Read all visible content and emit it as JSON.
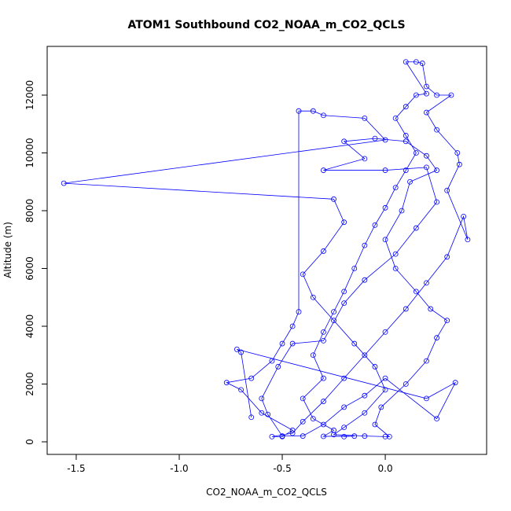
{
  "chart_data": {
    "type": "scatter",
    "connected": true,
    "title": "ATOM1 Southbound CO2_NOAA_m_CO2_QCLS",
    "x_label": "CO2_NOAA_m_CO2_QCLS",
    "y_label": "Altitude (m)",
    "color": "#0000ff",
    "xlim": [
      -1.641,
      0.492
    ],
    "ylim": [
      -435,
      13687
    ],
    "xticks": [
      {
        "value": -1.5,
        "label": "-1.5"
      },
      {
        "value": -1,
        "label": "-1.0"
      },
      {
        "value": -0.5,
        "label": "-0.5"
      },
      {
        "value": 0,
        "label": "0.0"
      }
    ],
    "yticks": [
      0,
      2000,
      4000,
      6000,
      8000,
      10000,
      12000
    ],
    "x": [
      -0.2,
      -0.15,
      -0.3,
      -0.25,
      -0.35,
      -0.4,
      -0.3,
      -0.35,
      -0.3,
      -0.25,
      -0.2,
      -0.15,
      -0.1,
      -0.05,
      0.0,
      0.05,
      0.1,
      0.15,
      0.1,
      0.05,
      0.1,
      0.15,
      0.2,
      0.1,
      0.15,
      0.18,
      0.2,
      0.25,
      0.32,
      0.2,
      0.25,
      0.35,
      0.36,
      0.3,
      0.4,
      0.38,
      0.3,
      0.2,
      0.1,
      0.0,
      -0.1,
      -0.2,
      -0.3,
      -0.4,
      -0.45,
      -0.55,
      -0.5,
      -0.45,
      -0.6,
      -0.7,
      -0.77,
      -0.65,
      -0.55,
      -0.5,
      -0.45,
      -0.42,
      -0.42,
      -0.35,
      -0.3,
      -0.1,
      0.0,
      -1.56,
      -0.25,
      -0.2,
      -0.3,
      -0.4,
      -0.35,
      -0.25,
      -0.15,
      -0.05,
      0.0,
      -0.1,
      -0.2,
      -0.25,
      -0.1,
      0.0,
      0.02,
      -0.05,
      -0.02,
      0.1,
      0.2,
      0.25,
      0.3,
      0.22,
      0.15,
      0.05,
      0.0,
      0.08,
      0.12,
      0.25,
      0.2,
      0.1,
      -0.05,
      -0.2,
      -0.1,
      -0.3,
      0.0,
      0.2,
      0.25,
      0.15,
      0.05,
      -0.1,
      -0.2,
      -0.3,
      -0.45,
      -0.52,
      -0.6,
      -0.57,
      -0.5,
      -0.4,
      -0.3,
      -0.2,
      -0.1,
      0.0,
      0.25,
      0.34,
      0.2,
      -0.72,
      -0.7,
      -0.65
    ],
    "values": [
      180,
      200,
      190,
      400,
      800,
      1500,
      2200,
      3000,
      3800,
      4500,
      5200,
      6000,
      6800,
      7500,
      8100,
      8800,
      9400,
      10000,
      10600,
      11200,
      11600,
      12000,
      12050,
      13150,
      13150,
      13100,
      12300,
      12000,
      12000,
      11400,
      10800,
      10000,
      9600,
      8700,
      7000,
      7800,
      6400,
      5500,
      4600,
      3800,
      3000,
      2200,
      1400,
      700,
      300,
      180,
      180,
      400,
      1000,
      1800,
      2050,
      2200,
      2800,
      3400,
      4000,
      4500,
      11450,
      11450,
      11300,
      11200,
      10450,
      8950,
      8400,
      7600,
      6600,
      5800,
      5000,
      4200,
      3400,
      2600,
      1800,
      1000,
      500,
      250,
      200,
      180,
      180,
      600,
      1200,
      2000,
      2800,
      3600,
      4200,
      4600,
      5200,
      6000,
      7000,
      8000,
      9000,
      9400,
      9900,
      10400,
      10500,
      10400,
      9800,
      9400,
      9400,
      9500,
      8300,
      7400,
      6500,
      5600,
      4800,
      3500,
      3400,
      2600,
      1500,
      950,
      200,
      200,
      600,
      1200,
      1600,
      2200,
      800,
      2050,
      1500,
      3200,
      3100,
      850
    ]
  }
}
